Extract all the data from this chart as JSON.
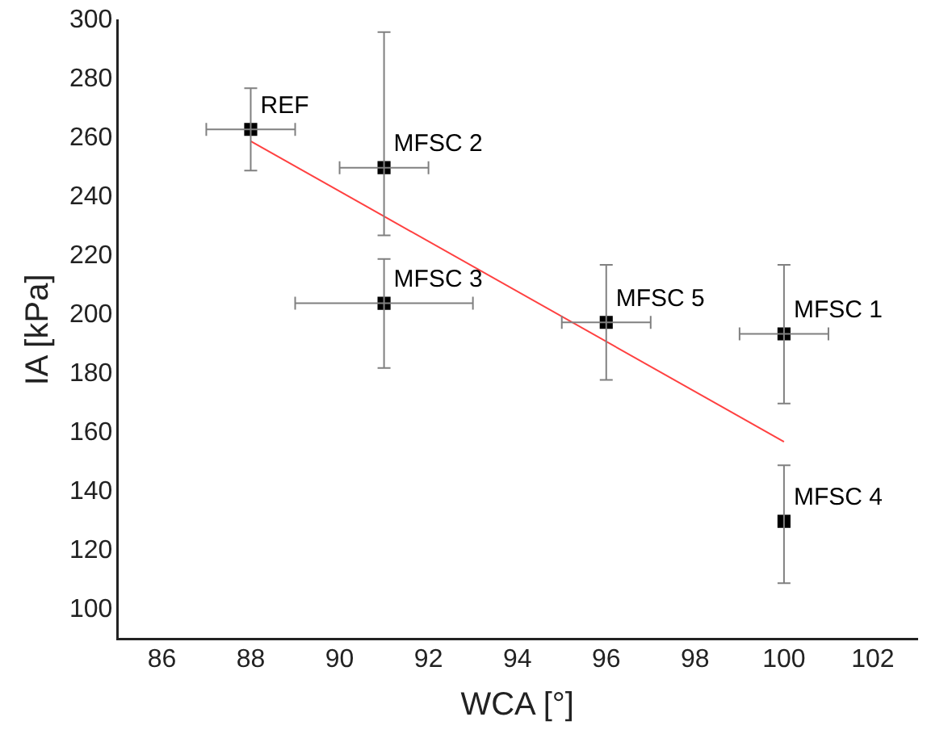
{
  "chart_data": {
    "type": "scatter",
    "xlabel": "WCA [°]",
    "ylabel": "IA [kPa]",
    "xlim": [
      85,
      103
    ],
    "xticks": [
      86,
      88,
      90,
      92,
      94,
      96,
      98,
      100,
      102
    ],
    "ylim": [
      90,
      300
    ],
    "yticks": [
      100,
      120,
      140,
      160,
      180,
      200,
      220,
      240,
      260,
      280,
      300
    ],
    "grid": false,
    "legend": false,
    "series": [
      {
        "marker": "square",
        "color": "#000000",
        "x": [
          88,
          91,
          91,
          96,
          100,
          100
        ],
        "values": [
          263,
          250,
          204,
          197.5,
          193.6,
          130
        ],
        "errors": [
          [
            249,
            277
          ],
          [
            227,
            296
          ],
          [
            182,
            219
          ],
          [
            178,
            217
          ],
          [
            170,
            217
          ],
          [
            109,
            149
          ]
        ],
        "xerrors": [
          1,
          1,
          2,
          1,
          1,
          null
        ]
      },
      {
        "type": "line",
        "marker": "none",
        "color": "#ff4040",
        "x": [
          88,
          100
        ],
        "values": [
          259,
          157
        ]
      }
    ],
    "annotations": [
      {
        "text": "REF",
        "x": 88,
        "y": 263
      },
      {
        "text": "MFSC 2",
        "x": 91,
        "y": 250
      },
      {
        "text": "MFSC 3",
        "x": 91,
        "y": 204
      },
      {
        "text": "MFSC 5",
        "x": 96,
        "y": 197.5
      },
      {
        "text": "MFSC 1",
        "x": 100,
        "y": 193.6
      },
      {
        "text": "MFSC 4",
        "x": 100,
        "y": 130
      }
    ]
  }
}
